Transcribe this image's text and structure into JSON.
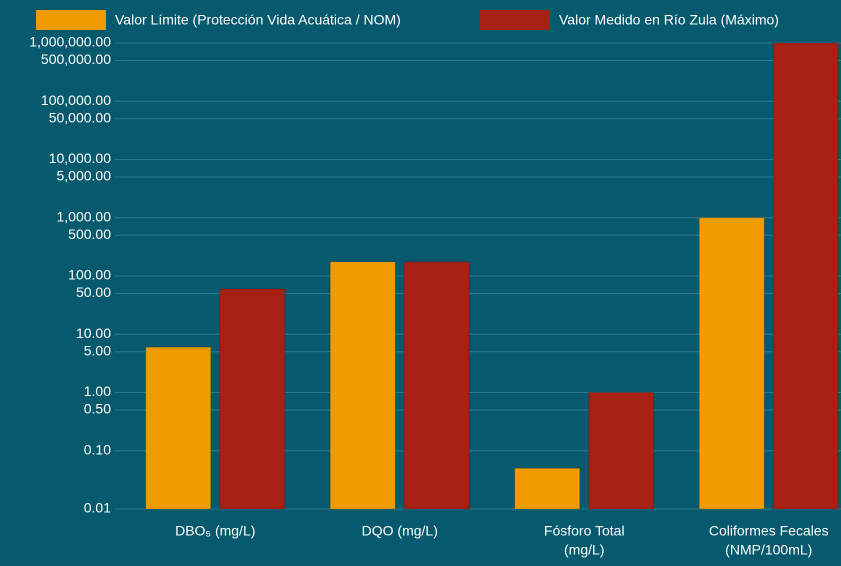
{
  "chart_data": {
    "type": "bar",
    "log_scale": true,
    "grid": true,
    "legend": "top",
    "categories": [
      [
        "DBO₅ (mg/L)"
      ],
      [
        "DQO (mg/L)"
      ],
      [
        "Fósforo Total",
        "(mg/L)"
      ],
      [
        "Coliformes Fecales",
        "(NMP/100mL)"
      ]
    ],
    "series": [
      {
        "name": "Valor Límite (Protección Vida Acuática / NOM)",
        "color": "#f09c00",
        "values": [
          6,
          175,
          0.05,
          1000
        ]
      },
      {
        "name": "Valor Medido en Río Zula (Máximo)",
        "color": "#a81f14",
        "values": [
          60,
          175,
          1,
          1000000
        ]
      }
    ],
    "ylim": [
      0.01,
      1000000
    ],
    "yticks": [
      0.01,
      {
        "value": 0.1,
        "label": "0.10"
      },
      {
        "value": 0.5,
        "label": "0.50"
      },
      {
        "value": 1,
        "label": "1.00"
      },
      {
        "value": 5,
        "label": "5.00"
      },
      {
        "value": 10,
        "label": "10.00"
      },
      {
        "value": 50,
        "label": "50.00"
      },
      {
        "value": 100,
        "label": "100.00"
      },
      {
        "value": 500,
        "label": "500.00"
      },
      {
        "value": 1000,
        "label": "1,000.00"
      },
      {
        "value": 5000,
        "label": "5,000.00"
      },
      {
        "value": 10000,
        "label": "10,000.00"
      },
      {
        "value": 50000,
        "label": "50,000.00"
      },
      {
        "value": 100000,
        "label": "100,000.00"
      },
      {
        "value": 500000,
        "label": "500,000.00"
      },
      {
        "value": 1000000,
        "label": "1,000,000.00"
      }
    ]
  }
}
